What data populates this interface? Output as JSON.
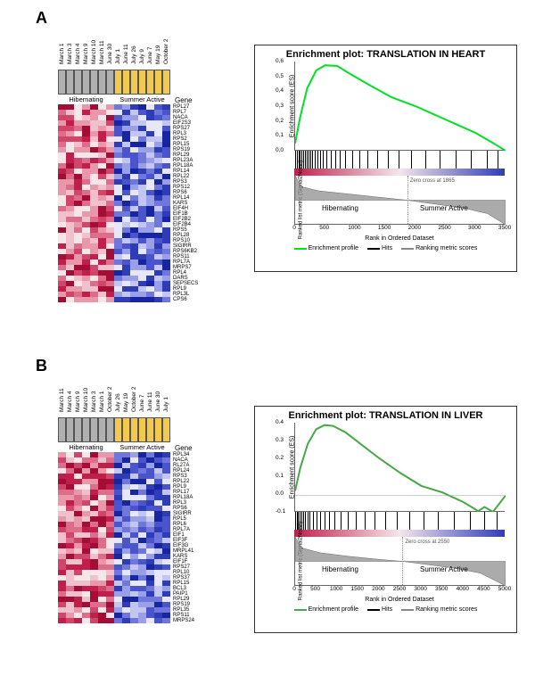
{
  "heatmap_palette": [
    "#1726a0",
    "#2f3cb8",
    "#4a55cd",
    "#6f77db",
    "#9aa0e8",
    "#c3c6f1",
    "#e6e7fa",
    "#f5e6ea",
    "#f0c0cc",
    "#e997ab",
    "#dd6d8a",
    "#d1456a",
    "#c01f4c",
    "#a40d36"
  ],
  "header_colors": {
    "hibernating": "#b0b0b0",
    "summer": "#f2c94c"
  },
  "gradient": {
    "left": "#c01f4c",
    "mid": "#f5e6ea",
    "right": "#2f3cb8"
  },
  "legend": {
    "enrichment_color": "#00e025",
    "enrichment_color_b": "#46a846",
    "hits_color": "#000000",
    "rank_color": "#888888",
    "items": [
      {
        "label": "Enrichment profile"
      },
      {
        "label": "Hits"
      },
      {
        "label": "Ranking metric scores"
      }
    ]
  },
  "panelA": {
    "label": "A",
    "dates": [
      "March 1",
      "March 3",
      "March 4",
      "March 9",
      "March 10",
      "March 11",
      "June 30",
      "July 1",
      "June 11",
      "July 26",
      "July 9",
      "June 7",
      "May 19",
      "October 2"
    ],
    "state_labels": {
      "hibernating": "Hibernating",
      "summer": "Summer Active"
    },
    "gene_header": "Gene",
    "genes": [
      "RPL27",
      "RPL7",
      "NACA",
      "EIF2S3",
      "RPS27",
      "RPL3",
      "RPS2",
      "RPL15",
      "RPS19",
      "RPL29",
      "RPL23A",
      "RPL18A",
      "RPL14",
      "RPL22",
      "RPS3",
      "RPS12",
      "RPS6",
      "RPL14",
      "KARS",
      "EIF4H",
      "EIF1B",
      "EIF2B2",
      "EIF2B4",
      "RPS5",
      "RPL28",
      "RPS10",
      "SIGIRR",
      "RPS6KB2",
      "RPS11",
      "RPL7A",
      "MRPS7",
      "RPL4",
      "DARS",
      "SEPSECS",
      "RPL9",
      "RPL3L",
      "CPS6"
    ],
    "hibernating_count": 7,
    "summer_count": 7,
    "chart": {
      "title": "Enrichment plot: TRANSLATION  IN HEART",
      "y_label": "Enrichment score (ES)",
      "y_ticks": [
        "0,6",
        "0,5",
        "0,4",
        "0,3",
        "0,2",
        "0,1",
        "0,0"
      ],
      "ylim": [
        0,
        0.6
      ],
      "curve_points": [
        [
          0,
          0.05
        ],
        [
          80,
          0.22
        ],
        [
          200,
          0.42
        ],
        [
          350,
          0.54
        ],
        [
          500,
          0.575
        ],
        [
          700,
          0.57
        ],
        [
          900,
          0.52
        ],
        [
          1200,
          0.45
        ],
        [
          1600,
          0.36
        ],
        [
          2000,
          0.3
        ],
        [
          2500,
          0.21
        ],
        [
          3000,
          0.12
        ],
        [
          3300,
          0.05
        ],
        [
          3500,
          0.0
        ]
      ],
      "x_max": 3500,
      "x_ticks": [
        0,
        500,
        1000,
        1500,
        2000,
        2500,
        3000,
        3500
      ],
      "hits": [
        20,
        45,
        70,
        95,
        120,
        150,
        175,
        205,
        235,
        265,
        300,
        340,
        380,
        430,
        480,
        540,
        610,
        680,
        760,
        850,
        960,
        1080,
        1220,
        1380,
        1550,
        1740,
        1950,
        2180,
        2420,
        2680,
        2940,
        3200,
        3380
      ],
      "zero_cross": {
        "label": "Zero cross at 1865",
        "value": 1865
      },
      "rank_y_label": "Ranked list metric (Signal2Noise)",
      "x_label": "Rank in Ordered Dataset",
      "state_left": "Hibernating",
      "state_right": "Summer Active",
      "rank_profile": [
        [
          0,
          1.0
        ],
        [
          100,
          0.55
        ],
        [
          400,
          0.38
        ],
        [
          900,
          0.25
        ],
        [
          1400,
          0.12
        ],
        [
          1865,
          0.0
        ],
        [
          2300,
          -0.15
        ],
        [
          2800,
          -0.32
        ],
        [
          3200,
          -0.55
        ],
        [
          3500,
          -1.0
        ]
      ]
    }
  },
  "panelB": {
    "label": "B",
    "dates": [
      "March 11",
      "March 4",
      "March 9",
      "March 10",
      "March 3",
      "March 1",
      "October 2",
      "July 26",
      "May 19",
      "October 2",
      "June 7",
      "June 11",
      "June 30",
      "July 1"
    ],
    "state_labels": {
      "hibernating": "Hibernating",
      "summer": "Summer Active"
    },
    "gene_header": "Gene",
    "genes": [
      "RPL34",
      "NACA",
      "RL27A",
      "RPL24",
      "RPS3",
      "RPL22",
      "RPL9",
      "RPL17",
      "RPL18A",
      "RPL3",
      "RPS6",
      "SIGIRR",
      "RPL5",
      "RPL6",
      "RPL7A",
      "EIF1",
      "EIF3F",
      "EIF3G",
      "MRPL41",
      "KARS",
      "EIF1F",
      "RPS27",
      "RPL10",
      "RPS37",
      "RPL15",
      "BCL3",
      "PAIP1",
      "RPL29",
      "RPS19",
      "RPL35",
      "RPS11",
      "MRPS24"
    ],
    "hibernating_count": 7,
    "summer_count": 7,
    "chart": {
      "title": "Enrichment plot: TRANSLATION  IN LIVER",
      "y_label": "Enrichment score (ES)",
      "y_ticks": [
        "0.4",
        "0.3",
        "0.2",
        "0.1",
        "0.0",
        "-0.1"
      ],
      "ylim": [
        -0.1,
        0.45
      ],
      "curve_points": [
        [
          0,
          0.03
        ],
        [
          120,
          0.17
        ],
        [
          300,
          0.32
        ],
        [
          500,
          0.41
        ],
        [
          700,
          0.435
        ],
        [
          900,
          0.43
        ],
        [
          1200,
          0.39
        ],
        [
          1500,
          0.33
        ],
        [
          2000,
          0.23
        ],
        [
          2500,
          0.14
        ],
        [
          3000,
          0.06
        ],
        [
          3500,
          0.02
        ],
        [
          4000,
          -0.04
        ],
        [
          4350,
          -0.095
        ],
        [
          4500,
          -0.07
        ],
        [
          4700,
          -0.1
        ],
        [
          5000,
          0.0
        ]
      ],
      "x_max": 5000,
      "x_ticks": [
        0,
        500,
        1000,
        1500,
        2000,
        2500,
        3000,
        3500,
        4000,
        4500,
        5000
      ],
      "hits": [
        30,
        55,
        90,
        130,
        165,
        210,
        260,
        310,
        370,
        440,
        520,
        610,
        710,
        830,
        960,
        1110,
        1280,
        1470,
        1680,
        1910,
        2160,
        2440,
        2740,
        3070,
        3420,
        3790,
        4170,
        4520,
        4800
      ],
      "zero_cross": {
        "label": "Zero cross at 2550",
        "value": 2550
      },
      "rank_y_label": "Ranked list metric (Signal2Noise)",
      "x_label": "Rank in Ordered Dataset",
      "state_left": "Hibernating",
      "state_right": "Summer Active",
      "rank_profile": [
        [
          0,
          1.0
        ],
        [
          150,
          0.55
        ],
        [
          600,
          0.35
        ],
        [
          1300,
          0.2
        ],
        [
          2000,
          0.08
        ],
        [
          2550,
          0.0
        ],
        [
          3100,
          -0.12
        ],
        [
          3800,
          -0.28
        ],
        [
          4400,
          -0.48
        ],
        [
          5000,
          -1.0
        ]
      ]
    }
  }
}
